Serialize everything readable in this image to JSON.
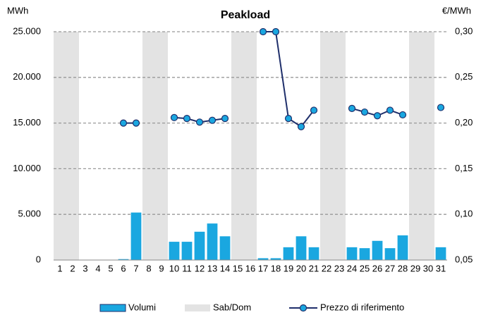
{
  "chart_data": {
    "type": "bar-line",
    "title": "Peakload",
    "y_label": "MWh",
    "y2_label": "€/MWh",
    "categories": [
      "1",
      "2",
      "3",
      "4",
      "5",
      "6",
      "7",
      "8",
      "9",
      "10",
      "11",
      "12",
      "13",
      "14",
      "15",
      "16",
      "17",
      "18",
      "19",
      "20",
      "21",
      "22",
      "23",
      "24",
      "25",
      "26",
      "27",
      "28",
      "29",
      "30",
      "31"
    ],
    "series": [
      {
        "name": "Volumi",
        "type": "bar",
        "color": "#1aa7e0",
        "values": [
          null,
          null,
          null,
          null,
          null,
          100,
          5200,
          null,
          null,
          2000,
          2000,
          3100,
          4000,
          2600,
          null,
          null,
          200,
          200,
          1400,
          2600,
          1400,
          null,
          null,
          1400,
          1300,
          2100,
          1300,
          2700,
          null,
          null,
          1400
        ]
      },
      {
        "name": "Sab/Dom",
        "type": "bar",
        "color": "#e3e3e3",
        "values": [
          25000,
          25000,
          null,
          null,
          null,
          null,
          null,
          25000,
          25000,
          null,
          null,
          null,
          null,
          null,
          25000,
          25000,
          null,
          null,
          null,
          null,
          null,
          25000,
          25000,
          null,
          null,
          null,
          null,
          null,
          25000,
          25000,
          null
        ]
      },
      {
        "name": "Prezzo di riferimento",
        "type": "line",
        "axis": "y2",
        "color": "#1f2f6b",
        "marker_color": "#1aa7e0",
        "values": [
          null,
          null,
          null,
          null,
          null,
          0.2,
          0.2,
          null,
          null,
          0.206,
          0.205,
          0.201,
          0.203,
          0.205,
          null,
          null,
          0.3,
          0.3,
          0.205,
          0.196,
          0.214,
          null,
          null,
          0.216,
          0.212,
          0.208,
          0.214,
          0.209,
          null,
          null,
          0.217
        ]
      }
    ],
    "ylim": [
      0,
      25000
    ],
    "yticks": [
      0,
      {
        "value": 5000,
        "label": "5.000"
      },
      {
        "value": 10000,
        "label": "10.000"
      },
      {
        "value": 15000,
        "label": "15.000"
      },
      {
        "value": 20000,
        "label": "20.000"
      },
      {
        "value": 25000,
        "label": "25.000"
      }
    ],
    "y2lim": [
      0.05,
      0.3
    ],
    "y2ticks": [
      {
        "value": 0.05,
        "label": "0,05"
      },
      {
        "value": 0.1,
        "label": "0,10"
      },
      {
        "value": 0.15,
        "label": "0,15"
      },
      {
        "value": 0.2,
        "label": "0,20"
      },
      {
        "value": 0.25,
        "label": "0,25"
      },
      {
        "value": 0.3,
        "label": "0,30"
      }
    ],
    "grid": true
  }
}
